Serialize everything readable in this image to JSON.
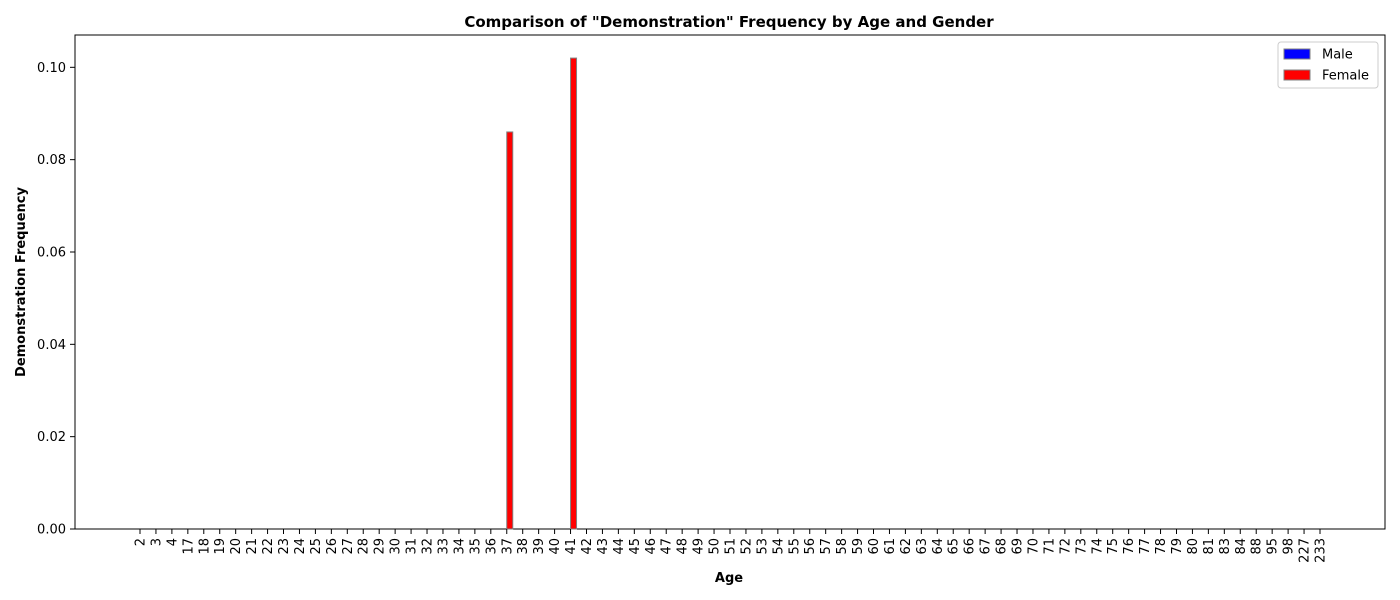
{
  "chart_data": {
    "type": "bar",
    "title": "Comparison of \"Demonstration\" Frequency by Age and Gender",
    "xlabel": "Age",
    "ylabel": "Demonstration Frequency",
    "categories": [
      "2",
      "3",
      "4",
      "17",
      "18",
      "19",
      "20",
      "21",
      "22",
      "23",
      "24",
      "25",
      "26",
      "27",
      "28",
      "29",
      "30",
      "31",
      "32",
      "33",
      "34",
      "35",
      "36",
      "37",
      "38",
      "39",
      "40",
      "41",
      "42",
      "43",
      "44",
      "45",
      "46",
      "47",
      "48",
      "49",
      "50",
      "51",
      "52",
      "53",
      "54",
      "55",
      "56",
      "57",
      "58",
      "59",
      "60",
      "61",
      "62",
      "63",
      "64",
      "65",
      "66",
      "67",
      "68",
      "69",
      "70",
      "71",
      "72",
      "73",
      "74",
      "75",
      "76",
      "77",
      "78",
      "79",
      "80",
      "81",
      "83",
      "84",
      "88",
      "95",
      "98",
      "227",
      "233"
    ],
    "series": [
      {
        "name": "Male",
        "color": "#0000ff",
        "values": [
          0,
          0,
          0,
          0,
          0,
          0,
          0,
          0,
          0,
          0,
          0,
          0,
          0,
          0,
          0,
          0,
          0,
          0,
          0,
          0,
          0,
          0,
          0,
          0,
          0,
          0,
          0,
          0,
          0,
          0,
          0,
          0,
          0,
          0,
          0,
          0,
          0,
          0,
          0,
          0,
          0,
          0,
          0,
          0,
          0,
          0,
          0,
          0,
          0,
          0,
          0,
          0,
          0,
          0,
          0,
          0,
          0,
          0,
          0,
          0,
          0,
          0,
          0,
          0,
          0,
          0,
          0,
          0,
          0,
          0,
          0,
          0,
          0,
          0,
          0
        ]
      },
      {
        "name": "Female",
        "color": "#ff0000",
        "values": [
          0,
          0,
          0,
          0,
          0,
          0,
          0,
          0,
          0,
          0,
          0,
          0,
          0,
          0,
          0,
          0,
          0,
          0,
          0,
          0,
          0,
          0,
          0,
          0.086,
          0,
          0,
          0,
          0.102,
          0,
          0,
          0,
          0,
          0,
          0,
          0,
          0,
          0,
          0,
          0,
          0,
          0,
          0,
          0,
          0,
          0,
          0,
          0,
          0,
          0,
          0,
          0,
          0,
          0,
          0,
          0,
          0,
          0,
          0,
          0,
          0,
          0,
          0,
          0,
          0,
          0,
          0,
          0,
          0,
          0,
          0,
          0,
          0,
          0,
          0,
          0
        ]
      }
    ],
    "ylim": [
      0,
      0.107
    ],
    "yticks": [
      "0.00",
      "0.02",
      "0.04",
      "0.06",
      "0.08",
      "0.10"
    ],
    "ytick_values": [
      0,
      0.02,
      0.04,
      0.06,
      0.08,
      0.1
    ],
    "grid": false,
    "legend_position": "top-right"
  }
}
